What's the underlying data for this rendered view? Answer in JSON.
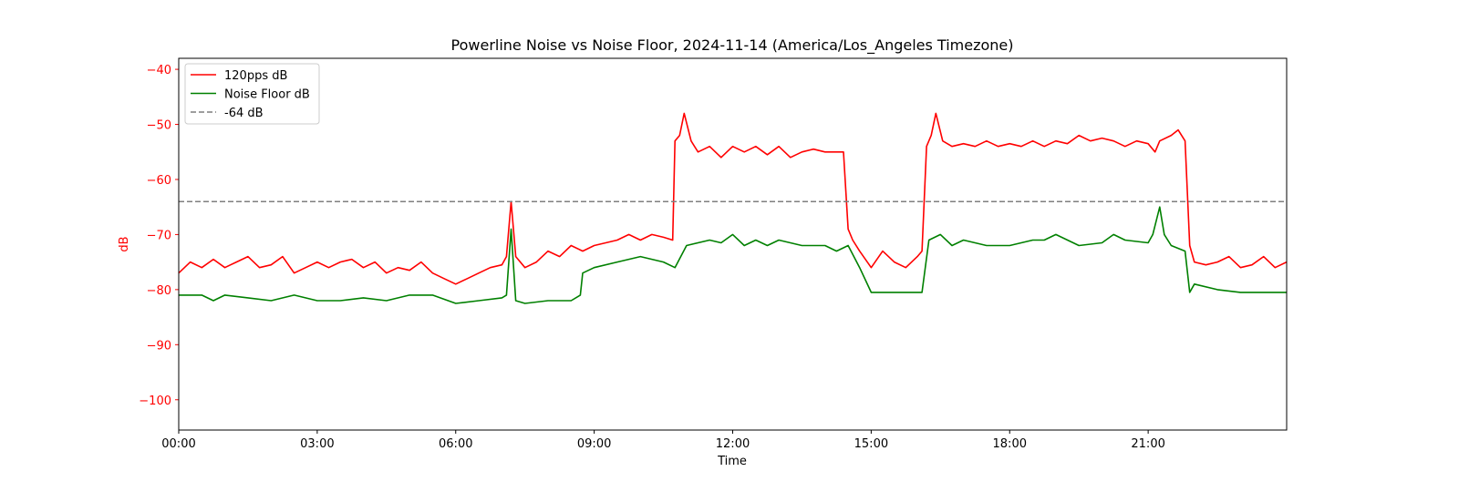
{
  "chart_data": {
    "type": "line",
    "title": "Powerline Noise vs Noise Floor, 2024-11-14 (America/Los_Angeles Timezone)",
    "xlabel": "Time",
    "ylabel": "dB",
    "x_unit": "hours",
    "xlim": [
      0,
      24
    ],
    "ylim": [
      -105.5,
      -38
    ],
    "x_ticks": [
      {
        "value": 0,
        "label": "00:00"
      },
      {
        "value": 3,
        "label": "03:00"
      },
      {
        "value": 6,
        "label": "06:00"
      },
      {
        "value": 9,
        "label": "09:00"
      },
      {
        "value": 12,
        "label": "12:00"
      },
      {
        "value": 15,
        "label": "15:00"
      },
      {
        "value": 18,
        "label": "18:00"
      },
      {
        "value": 21,
        "label": "21:00"
      }
    ],
    "y_ticks": [
      {
        "value": -40,
        "label": "−40"
      },
      {
        "value": -50,
        "label": "−50"
      },
      {
        "value": -60,
        "label": "−60"
      },
      {
        "value": -70,
        "label": "−70"
      },
      {
        "value": -80,
        "label": "−80"
      },
      {
        "value": -90,
        "label": "−90"
      },
      {
        "value": -100,
        "label": "−100"
      }
    ],
    "grid": false,
    "legend_position": "top-left",
    "ylabel_color": "#ff0000",
    "series": [
      {
        "name": "120pps dB",
        "color": "#ff0000",
        "style": "solid",
        "x": [
          0,
          0.25,
          0.5,
          0.75,
          1,
          1.25,
          1.5,
          1.75,
          2,
          2.25,
          2.5,
          2.75,
          3,
          3.25,
          3.5,
          3.75,
          4,
          4.25,
          4.5,
          4.75,
          5,
          5.25,
          5.5,
          5.75,
          6,
          6.25,
          6.5,
          6.75,
          7,
          7.1,
          7.2,
          7.3,
          7.5,
          7.75,
          8,
          8.25,
          8.5,
          8.75,
          9,
          9.25,
          9.5,
          9.75,
          10,
          10.25,
          10.5,
          10.7,
          10.75,
          10.85,
          10.95,
          11.1,
          11.25,
          11.5,
          11.75,
          12,
          12.25,
          12.5,
          12.75,
          13,
          13.25,
          13.5,
          13.75,
          14,
          14.25,
          14.4,
          14.5,
          14.6,
          14.75,
          15,
          15.25,
          15.5,
          15.75,
          16,
          16.1,
          16.2,
          16.3,
          16.4,
          16.55,
          16.75,
          17,
          17.25,
          17.5,
          17.75,
          18,
          18.25,
          18.5,
          18.75,
          19,
          19.25,
          19.5,
          19.75,
          20,
          20.25,
          20.5,
          20.75,
          21,
          21.15,
          21.25,
          21.5,
          21.65,
          21.8,
          21.9,
          22,
          22.25,
          22.5,
          22.75,
          23,
          23.25,
          23.5,
          23.75,
          24
        ],
        "y": [
          -77,
          -75,
          -76,
          -74.5,
          -76,
          -75,
          -74,
          -76,
          -75.5,
          -74,
          -77,
          -76,
          -75,
          -76,
          -75,
          -74.5,
          -76,
          -75,
          -77,
          -76,
          -76.5,
          -75,
          -77,
          -78,
          -79,
          -78,
          -77,
          -76,
          -75.5,
          -74,
          -64,
          -74,
          -76,
          -75,
          -73,
          -74,
          -72,
          -73,
          -72,
          -71.5,
          -71,
          -70,
          -71,
          -70,
          -70.5,
          -71,
          -53,
          -52,
          -48,
          -53,
          -55,
          -54,
          -56,
          -54,
          -55,
          -54,
          -55.5,
          -54,
          -56,
          -55,
          -54.5,
          -55,
          -55,
          -55,
          -69,
          -71,
          -73,
          -76,
          -73,
          -75,
          -76,
          -74,
          -73,
          -54,
          -52,
          -48,
          -53,
          -54,
          -53.5,
          -54,
          -53,
          -54,
          -53.5,
          -54,
          -53,
          -54,
          -53,
          -53.5,
          -52,
          -53,
          -52.5,
          -53,
          -54,
          -53,
          -53.5,
          -55,
          -53,
          -52,
          -51,
          -53,
          -72,
          -75,
          -75.5,
          -75,
          -74,
          -76,
          -75.5,
          -74,
          -76,
          -75
        ]
      },
      {
        "name": "Noise Floor dB",
        "color": "#008000",
        "style": "solid",
        "x": [
          0,
          0.5,
          0.75,
          1,
          1.5,
          2,
          2.5,
          3,
          3.5,
          4,
          4.5,
          5,
          5.5,
          6,
          6.5,
          7,
          7.1,
          7.2,
          7.3,
          7.5,
          8,
          8.5,
          8.7,
          8.75,
          9,
          9.5,
          10,
          10.5,
          10.75,
          11,
          11.5,
          11.75,
          12,
          12.25,
          12.5,
          12.75,
          13,
          13.5,
          14,
          14.25,
          14.5,
          14.75,
          15,
          15.5,
          16,
          16.1,
          16.25,
          16.5,
          16.75,
          17,
          17.5,
          18,
          18.5,
          18.75,
          19,
          19.5,
          20,
          20.25,
          20.5,
          21,
          21.1,
          21.25,
          21.35,
          21.5,
          21.8,
          21.9,
          22,
          22.5,
          23,
          23.5,
          24
        ],
        "y": [
          -81,
          -81,
          -82,
          -81,
          -81.5,
          -82,
          -81,
          -82,
          -82,
          -81.5,
          -82,
          -81,
          -81,
          -82.5,
          -82,
          -81.5,
          -81,
          -69,
          -82,
          -82.5,
          -82,
          -82,
          -81,
          -77,
          -76,
          -75,
          -74,
          -75,
          -76,
          -72,
          -71,
          -71.5,
          -70,
          -72,
          -71,
          -72,
          -71,
          -72,
          -72,
          -73,
          -72,
          -76,
          -80.5,
          -80.5,
          -80.5,
          -80.5,
          -71,
          -70,
          -72,
          -71,
          -72,
          -72,
          -71,
          -71,
          -70,
          -72,
          -71.5,
          -70,
          -71,
          -71.5,
          -70,
          -65,
          -70,
          -72,
          -73,
          -80.5,
          -79,
          -80,
          -80.5,
          -80.5,
          -80.5
        ]
      },
      {
        "name": "-64 dB",
        "color": "#7f7f7f",
        "style": "dashed",
        "x": [
          0,
          24
        ],
        "y": [
          -64,
          -64
        ]
      }
    ]
  }
}
